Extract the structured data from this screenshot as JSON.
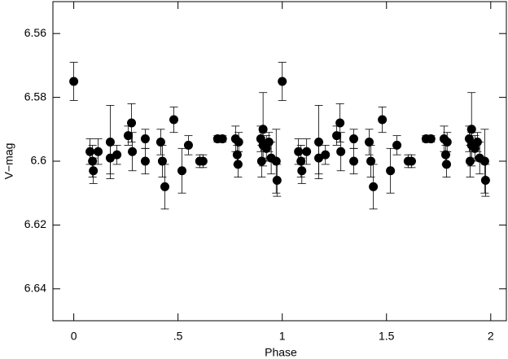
{
  "chart_data": {
    "type": "scatter",
    "x_label": "Phase",
    "y_label": "V−mag",
    "xlim": [
      -0.1,
      2.075
    ],
    "ylim": [
      6.55,
      6.65
    ],
    "y_inverted": true,
    "xticks": [
      0,
      {
        "value": 0.5,
        "label": ".5"
      },
      1,
      1.5,
      2
    ],
    "yticks": [
      6.56,
      6.58,
      6.6,
      6.62,
      6.64
    ],
    "color": "#000000",
    "x": [
      0,
      0.078,
      0.09,
      0.094,
      0.117,
      0.175,
      0.175,
      0.207,
      0.261,
      0.277,
      0.281,
      0.343,
      0.343,
      0.417,
      0.425,
      0.437,
      0.48,
      0.519,
      0.55,
      0.604,
      0.62,
      0.69,
      0.713,
      0.776,
      0.784,
      0.788,
      0.791,
      0.897,
      0.901,
      0.908,
      0.908,
      0.924,
      0.936,
      0.947,
      0.971,
      0.975,
      1,
      1.078,
      1.09,
      1.094,
      1.117,
      1.175,
      1.175,
      1.207,
      1.261,
      1.277,
      1.281,
      1.343,
      1.343,
      1.417,
      1.425,
      1.437,
      1.48,
      1.519,
      1.55,
      1.604,
      1.62,
      1.69,
      1.713,
      1.776,
      1.784,
      1.788,
      1.791,
      1.897,
      1.901,
      1.908,
      1.908,
      1.924,
      1.936,
      1.947,
      1.971,
      1.975
    ],
    "values": [
      6.575,
      6.597,
      6.6,
      6.603,
      6.597,
      6.594,
      6.599,
      6.598,
      6.592,
      6.588,
      6.597,
      6.593,
      6.6,
      6.594,
      6.6,
      6.608,
      6.587,
      6.603,
      6.595,
      6.6,
      6.6,
      6.593,
      6.593,
      6.593,
      6.598,
      6.601,
      6.594,
      6.593,
      6.6,
      6.59,
      6.595,
      6.596,
      6.594,
      6.599,
      6.6,
      6.606,
      6.575,
      6.597,
      6.6,
      6.603,
      6.597,
      6.594,
      6.599,
      6.598,
      6.592,
      6.588,
      6.597,
      6.593,
      6.6,
      6.594,
      6.6,
      6.608,
      6.587,
      6.603,
      6.595,
      6.6,
      6.6,
      6.593,
      6.593,
      6.593,
      6.598,
      6.601,
      6.594,
      6.593,
      6.6,
      6.59,
      6.595,
      6.596,
      6.594,
      6.599,
      6.6,
      6.606
    ],
    "errors": [
      0.006,
      0.004,
      0.005,
      0.004,
      0.004,
      0.0115,
      0.005,
      0.003,
      0.003,
      0.006,
      0.006,
      0.003,
      0.004,
      0.004,
      0.005,
      0.007,
      0.004,
      0.007,
      0.003,
      0.002,
      0.002,
      0.001,
      0.001,
      0.004,
      0.003,
      0.004,
      0.003,
      0.004,
      0.005,
      0.0115,
      0.004,
      0.004,
      0.003,
      0.005,
      0.01,
      0.005,
      0.006,
      0.004,
      0.005,
      0.004,
      0.004,
      0.0115,
      0.005,
      0.003,
      0.003,
      0.006,
      0.006,
      0.003,
      0.004,
      0.004,
      0.005,
      0.007,
      0.004,
      0.007,
      0.003,
      0.002,
      0.002,
      0.001,
      0.001,
      0.004,
      0.003,
      0.004,
      0.003,
      0.004,
      0.005,
      0.0115,
      0.004,
      0.004,
      0.003,
      0.005,
      0.01,
      0.005
    ]
  }
}
